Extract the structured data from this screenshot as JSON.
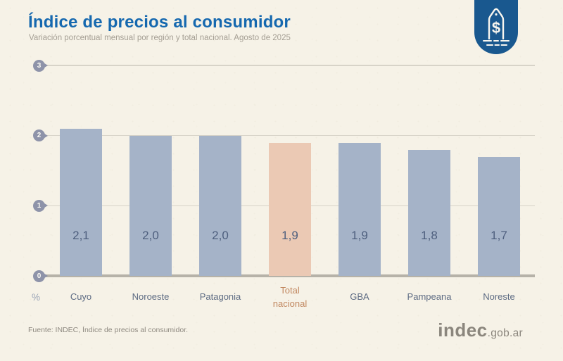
{
  "page": {
    "background": "#f6f2e7"
  },
  "header": {
    "title": "Índice de precios al consumidor",
    "subtitle": "Variación porcentual mensual por región y total nacional. Agosto de 2025",
    "title_color": "#1568af"
  },
  "badge": {
    "icon": "price-tag-dollar-icon",
    "symbol": "$",
    "color": "#19588f"
  },
  "chart_data": {
    "type": "bar",
    "title": "Índice de precios al consumidor",
    "subtitle": "Variación porcentual mensual por región y total nacional. Agosto de 2025",
    "categories": [
      "Cuyo",
      "Noroeste",
      "Patagonia",
      "Total nacional",
      "GBA",
      "Pampeana",
      "Noreste"
    ],
    "values": [
      2.1,
      2.0,
      2.0,
      1.9,
      1.9,
      1.8,
      1.7
    ],
    "value_labels": [
      "2,1",
      "2,0",
      "2,0",
      "1,9",
      "1,9",
      "1,8",
      "1,7"
    ],
    "highlight_index": 3,
    "highlight_category": "Total nacional",
    "yticks": [
      0,
      1,
      2,
      3
    ],
    "ylim": [
      0,
      3
    ],
    "ylabel": "%",
    "xlabel": "",
    "grid": true,
    "legend": false,
    "colors": {
      "bar": "#a5b3c8",
      "highlight_bar": "#ebc9b4",
      "value_label": "#4e5f7e",
      "category_label": "#5d6b83",
      "highlight_category_label": "#c1875f",
      "gridline": "#d7d3c8",
      "baseline": "#b6b2a8",
      "tick_pin": "#8e93a9",
      "unit_label": "#9aa4b6"
    }
  },
  "footer": {
    "source": "Fuente: INDEC, Índice de precios al consumidor.",
    "logo_main": "indec",
    "logo_suffix": ".gob.ar"
  }
}
